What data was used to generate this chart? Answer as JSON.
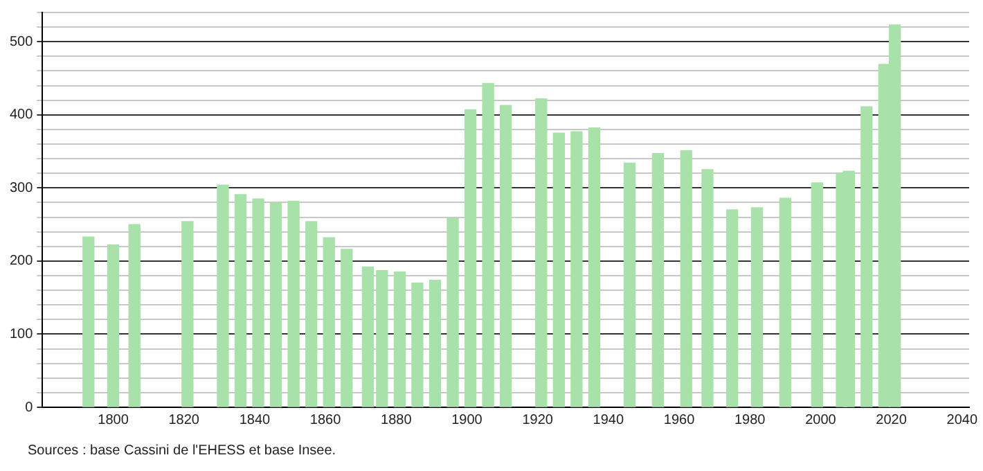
{
  "chart_data": {
    "type": "bar",
    "color": "#a8e2aa",
    "x": [
      1793,
      1800,
      1806,
      1821,
      1831,
      1836,
      1841,
      1846,
      1851,
      1856,
      1861,
      1866,
      1872,
      1876,
      1881,
      1886,
      1891,
      1896,
      1901,
      1906,
      1911,
      1921,
      1926,
      1931,
      1936,
      1946,
      1954,
      1962,
      1968,
      1975,
      1982,
      1990,
      1999,
      2006,
      2008,
      2013,
      2018,
      2021
    ],
    "values": [
      233,
      222,
      250,
      254,
      304,
      291,
      285,
      280,
      282,
      254,
      232,
      216,
      192,
      187,
      185,
      170,
      174,
      259,
      407,
      443,
      413,
      422,
      375,
      377,
      382,
      334,
      347,
      351,
      325,
      270,
      273,
      286,
      307,
      320,
      323,
      411,
      469,
      523
    ],
    "xlim": [
      1780,
      2042
    ],
    "xticks": [
      1800,
      1820,
      1840,
      1860,
      1880,
      1900,
      1920,
      1940,
      1960,
      1980,
      2000,
      2020,
      2040
    ],
    "ylim": [
      0,
      540
    ],
    "yticks": [
      0,
      {
        "value": 20,
        "label": null
      },
      {
        "value": 40,
        "label": null
      },
      {
        "value": 60,
        "label": null
      },
      {
        "value": 80,
        "label": null
      },
      100,
      {
        "value": 120,
        "label": null
      },
      {
        "value": 140,
        "label": null
      },
      {
        "value": 160,
        "label": null
      },
      {
        "value": 180,
        "label": null
      },
      200,
      {
        "value": 220,
        "label": null
      },
      {
        "value": 240,
        "label": null
      },
      {
        "value": 260,
        "label": null
      },
      {
        "value": 280,
        "label": null
      },
      300,
      {
        "value": 320,
        "label": null
      },
      {
        "value": 340,
        "label": null
      },
      {
        "value": 360,
        "label": null
      },
      {
        "value": 380,
        "label": null
      },
      400,
      {
        "value": 420,
        "label": null
      },
      {
        "value": 440,
        "label": null
      },
      {
        "value": 460,
        "label": null
      },
      {
        "value": 480,
        "label": null
      },
      500,
      {
        "value": 520,
        "label": null
      },
      {
        "value": 540,
        "label": null
      }
    ],
    "grid": "y",
    "annotations": [
      "Sources : base Cassini de l'EHESS et base Insee."
    ]
  }
}
